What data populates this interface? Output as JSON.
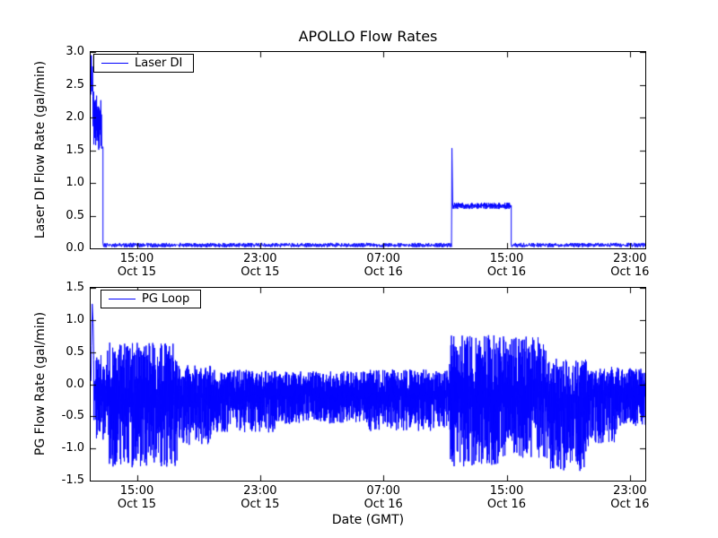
{
  "figure_background": "#ffffff",
  "chart_data": [
    {
      "type": "line",
      "title": "APOLLO Flow Rates",
      "ylabel": "Laser DI Flow Rate (gal/min)",
      "xlabel": "",
      "legend": {
        "label": "Laser DI",
        "location": "upper left"
      },
      "x_unit": "hours since Oct 15 00:00 GMT",
      "xlim": [
        12,
        48
      ],
      "ylim": [
        0,
        3
      ],
      "yticks": [
        0,
        0.5,
        1,
        1.5,
        2,
        2.5,
        3
      ],
      "ytick_labels": [
        "0.0",
        "0.5",
        "1.0",
        "1.5",
        "2.0",
        "2.5",
        "3.0"
      ],
      "xticks": [
        15,
        23,
        31,
        39,
        47
      ],
      "xtick_labels": [
        [
          "15:00",
          "Oct 15"
        ],
        [
          "23:00",
          "Oct 15"
        ],
        [
          "07:00",
          "Oct 16"
        ],
        [
          "15:00",
          "Oct 16"
        ],
        [
          "23:00",
          "Oct 16"
        ]
      ],
      "grid": false,
      "seed": 7,
      "series": [
        {
          "name": "Laser DI",
          "color": "#0000ff",
          "segments": [
            {
              "kind": "path",
              "points": [
                [
                  12.02,
                  2.35
                ],
                [
                  12.05,
                  2.95
                ],
                [
                  12.09,
                  2.4
                ],
                [
                  12.12,
                  2.78
                ],
                [
                  12.15,
                  2.32
                ]
              ]
            },
            {
              "kind": "noise",
              "t0": 12.15,
              "t1": 12.72,
              "base": 1.95,
              "up": 0.45,
              "down": 0.45,
              "density": 3,
              "pow": 0.6
            },
            {
              "kind": "flat",
              "t0": 12.72,
              "t1": 12.8,
              "value": 1.55
            },
            {
              "kind": "noise",
              "t0": 12.8,
              "t1": 35.42,
              "base": 0.05,
              "up": 0.035,
              "down": 0.035,
              "density": 1.3,
              "pow": 0.7
            },
            {
              "kind": "path",
              "points": [
                [
                  35.45,
                  1.53
                ],
                [
                  35.5,
                  0.66
                ]
              ]
            },
            {
              "kind": "noise",
              "t0": 35.5,
              "t1": 39.3,
              "base": 0.65,
              "up": 0.05,
              "down": 0.05,
              "density": 2,
              "pow": 0.7
            },
            {
              "kind": "noise",
              "t0": 39.3,
              "t1": 48.0,
              "base": 0.05,
              "up": 0.035,
              "down": 0.035,
              "density": 1.3,
              "pow": 0.7
            }
          ]
        }
      ],
      "data_summary": "Spike to ~2.9 then noisy 1.5-2.4 gal/min ~12:00-12:45 Oct 15; baseline ~0.05 until ~11:30 Oct 16; spike to ~1.5 then steady ~0.65 until ~15:20 Oct 16; back to ~0.05 through end."
    },
    {
      "type": "line",
      "title": "",
      "ylabel": "PG Flow Rate (gal/min)",
      "xlabel": "Date (GMT)",
      "legend": {
        "label": "PG Loop",
        "location": "upper left"
      },
      "x_unit": "hours since Oct 15 00:00 GMT",
      "xlim": [
        12,
        48
      ],
      "ylim": [
        -1.5,
        1.5
      ],
      "yticks": [
        -1.5,
        -1,
        -0.5,
        0,
        0.5,
        1,
        1.5
      ],
      "ytick_labels": [
        "-1.5",
        "-1.0",
        "-0.5",
        "0.0",
        "0.5",
        "1.0",
        "1.5"
      ],
      "xticks": [
        15,
        23,
        31,
        39,
        47
      ],
      "xtick_labels": [
        [
          "15:00",
          "Oct 15"
        ],
        [
          "23:00",
          "Oct 15"
        ],
        [
          "07:00",
          "Oct 16"
        ],
        [
          "15:00",
          "Oct 16"
        ],
        [
          "23:00",
          "Oct 16"
        ]
      ],
      "grid": false,
      "seed": 13,
      "series": [
        {
          "name": "PG Loop",
          "color": "#0000ff",
          "segments": [
            {
              "kind": "path",
              "points": [
                [
                  12.02,
                  0.05
                ],
                [
                  12.06,
                  0.6
                ],
                [
                  12.1,
                  1.25
                ],
                [
                  12.16,
                  0.95
                ],
                [
                  12.2,
                  0.45
                ]
              ]
            },
            {
              "kind": "noise",
              "t0": 12.2,
              "t1": 13.2,
              "base": -0.1,
              "up": 0.65,
              "down": 0.8,
              "density": 3,
              "pow": 0.55
            },
            {
              "kind": "noise",
              "t0": 13.2,
              "t1": 17.6,
              "base": -0.2,
              "up": 0.85,
              "down": 1.1,
              "density": 3,
              "pow": 0.55
            },
            {
              "kind": "noise",
              "t0": 17.6,
              "t1": 19.8,
              "base": -0.2,
              "up": 0.5,
              "down": 0.75,
              "density": 3,
              "pow": 0.55
            },
            {
              "kind": "noise",
              "t0": 19.8,
              "t1": 24.0,
              "base": -0.15,
              "up": 0.38,
              "down": 0.6,
              "density": 3,
              "pow": 0.55
            },
            {
              "kind": "noise",
              "t0": 24.0,
              "t1": 30.0,
              "base": -0.12,
              "up": 0.32,
              "down": 0.5,
              "density": 3,
              "pow": 0.55
            },
            {
              "kind": "noise",
              "t0": 30.0,
              "t1": 35.3,
              "base": -0.15,
              "up": 0.38,
              "down": 0.58,
              "density": 3,
              "pow": 0.55
            },
            {
              "kind": "noise",
              "t0": 35.3,
              "t1": 38.6,
              "base": -0.18,
              "up": 0.95,
              "down": 1.1,
              "density": 3,
              "pow": 0.55
            },
            {
              "kind": "noise",
              "t0": 38.6,
              "t1": 41.6,
              "base": -0.15,
              "up": 0.9,
              "down": 1.0,
              "density": 3,
              "pow": 0.55
            },
            {
              "kind": "noise",
              "t0": 41.6,
              "t1": 44.3,
              "base": -0.25,
              "up": 0.65,
              "down": 1.1,
              "density": 3,
              "pow": 0.55
            },
            {
              "kind": "noise",
              "t0": 44.3,
              "t1": 46.2,
              "base": -0.18,
              "up": 0.45,
              "down": 0.75,
              "density": 3,
              "pow": 0.55
            },
            {
              "kind": "noise",
              "t0": 46.2,
              "t1": 48.0,
              "base": -0.1,
              "up": 0.35,
              "down": 0.55,
              "density": 3,
              "pow": 0.55
            }
          ]
        }
      ],
      "data_summary": "Noisy bipolar signal: spike +1.25 at start; wide band -1.35..+0.85 until ~17:30 Oct 15; narrower band -0.7..+0.2 overnight; wide band -1.3..+0.8 ~11:30-20:00 Oct 16 with dips to ~-1.3; narrows to -0.6..+0.2 by end."
    }
  ]
}
